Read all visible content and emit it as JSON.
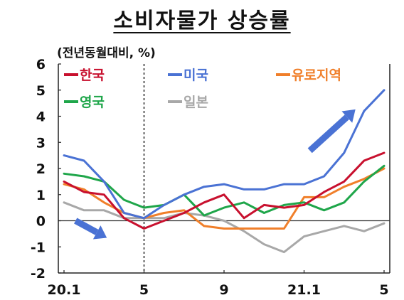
{
  "chart_data": {
    "type": "line",
    "title": "소비자물가 상승률",
    "unit": "(전년동월대비, %)",
    "categories": [
      "20.1",
      "20.2",
      "20.3",
      "20.4",
      "20.5",
      "20.6",
      "20.7",
      "20.8",
      "20.9",
      "20.10",
      "20.11",
      "20.12",
      "21.1",
      "21.2",
      "21.3",
      "21.4",
      "21.5"
    ],
    "x_tick_labels": [
      "20.1",
      "5",
      "9",
      "21.1",
      "5"
    ],
    "x_tick_index": [
      0,
      4,
      8,
      12,
      16
    ],
    "ylim": [
      -2,
      6
    ],
    "y_ticks": [
      -2,
      -1,
      0,
      1,
      2,
      3,
      4,
      5,
      6
    ],
    "grid": false,
    "legend_position": "top",
    "series": [
      {
        "name": "한국",
        "color": "#c8102e",
        "values": [
          1.5,
          1.1,
          1.0,
          0.1,
          -0.3,
          0.0,
          0.3,
          0.7,
          1.0,
          0.1,
          0.6,
          0.5,
          0.6,
          1.1,
          1.5,
          2.3,
          2.6
        ]
      },
      {
        "name": "미국",
        "color": "#4a72d4",
        "values": [
          2.5,
          2.3,
          1.5,
          0.3,
          0.1,
          0.6,
          1.0,
          1.3,
          1.4,
          1.2,
          1.2,
          1.4,
          1.4,
          1.7,
          2.6,
          4.2,
          5.0
        ]
      },
      {
        "name": "유로지역",
        "color": "#f07f2a",
        "values": [
          1.4,
          1.2,
          0.7,
          0.3,
          0.1,
          0.3,
          0.4,
          -0.2,
          -0.3,
          -0.3,
          -0.3,
          -0.3,
          0.9,
          0.9,
          1.3,
          1.6,
          2.0
        ]
      },
      {
        "name": "영국",
        "color": "#1fa64a",
        "values": [
          1.8,
          1.7,
          1.5,
          0.8,
          0.5,
          0.6,
          1.0,
          0.2,
          0.5,
          0.7,
          0.3,
          0.6,
          0.7,
          0.4,
          0.7,
          1.5,
          2.1
        ]
      },
      {
        "name": "일본",
        "color": "#a8a8a8",
        "values": [
          0.7,
          0.4,
          0.4,
          0.1,
          0.1,
          0.1,
          0.3,
          0.2,
          0.0,
          -0.4,
          -0.9,
          -1.2,
          -0.6,
          -0.4,
          -0.2,
          -0.4,
          -0.1
        ]
      }
    ],
    "annotations": [
      {
        "type": "arrow",
        "direction": "down-right",
        "color": "#4a72d4",
        "at_index": 1.5,
        "at_value": 0.0
      },
      {
        "type": "arrow",
        "direction": "up-right",
        "color": "#4a72d4",
        "at_index": 13.5,
        "at_value": 3.5
      },
      {
        "type": "vline",
        "style": "dashed",
        "at_index": 4
      }
    ]
  }
}
